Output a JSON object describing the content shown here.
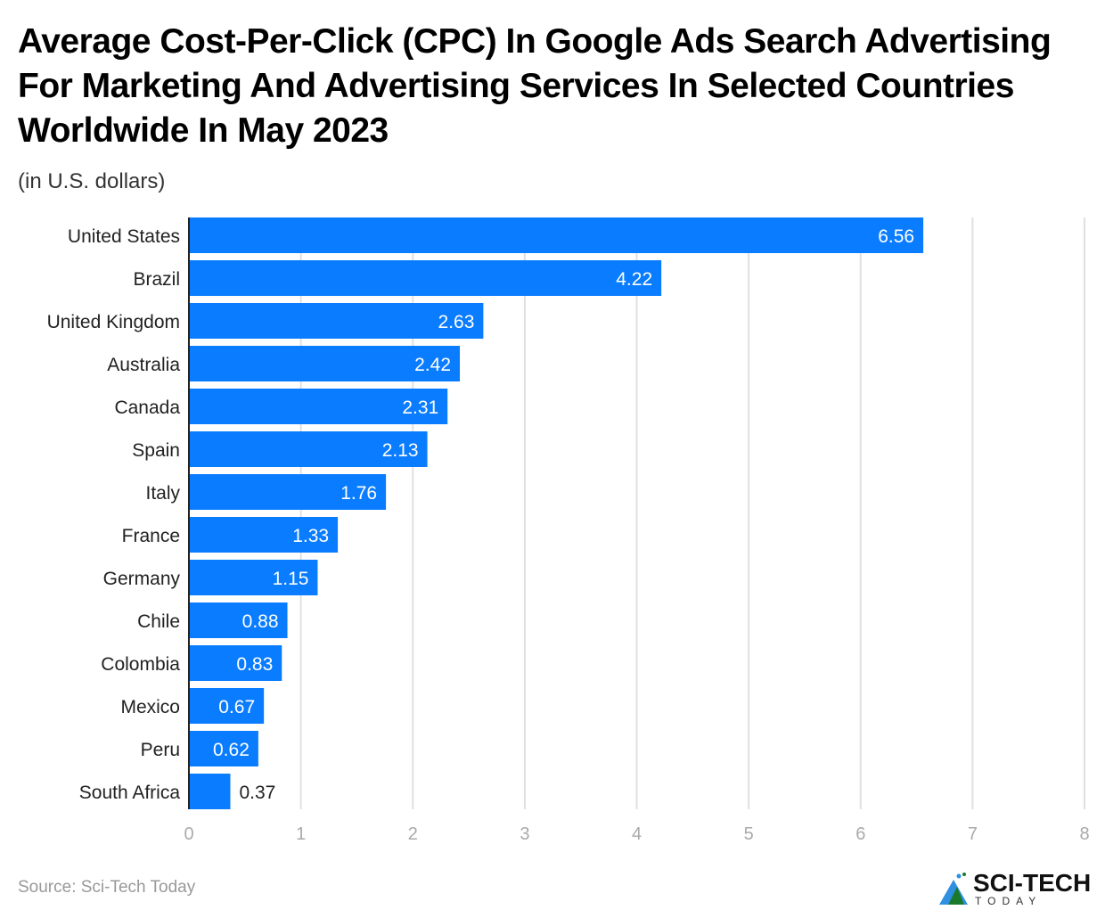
{
  "chart_data": {
    "type": "bar",
    "orientation": "horizontal",
    "title": "Average Cost-Per-Click (CPC) In Google Ads Search Advertising For Marketing And Advertising Services In Selected Countries Worldwide In May 2023",
    "subtitle": "(in U.S. dollars)",
    "xlabel": "",
    "ylabel": "",
    "categories": [
      "United States",
      "Brazil",
      "United Kingdom",
      "Australia",
      "Canada",
      "Spain",
      "Italy",
      "France",
      "Germany",
      "Chile",
      "Colombia",
      "Mexico",
      "Peru",
      "South Africa"
    ],
    "values": [
      6.56,
      4.22,
      2.63,
      2.42,
      2.31,
      2.13,
      1.76,
      1.33,
      1.15,
      0.88,
      0.83,
      0.67,
      0.62,
      0.37
    ],
    "value_labels": [
      "6.56",
      "4.22",
      "2.63",
      "2.42",
      "2.31",
      "2.13",
      "1.76",
      "1.33",
      "1.15",
      "0.88",
      "0.83",
      "0.67",
      "0.62",
      "0.37"
    ],
    "xlim": [
      0,
      8
    ],
    "xticks": [
      "0",
      "1",
      "2",
      "3",
      "4",
      "5",
      "6",
      "7",
      "8"
    ],
    "grid": true,
    "bar_color": "#0a7cff",
    "source": "Source: Sci-Tech Today"
  },
  "logo": {
    "name": "SCI-TECH",
    "sub": "TODAY"
  }
}
